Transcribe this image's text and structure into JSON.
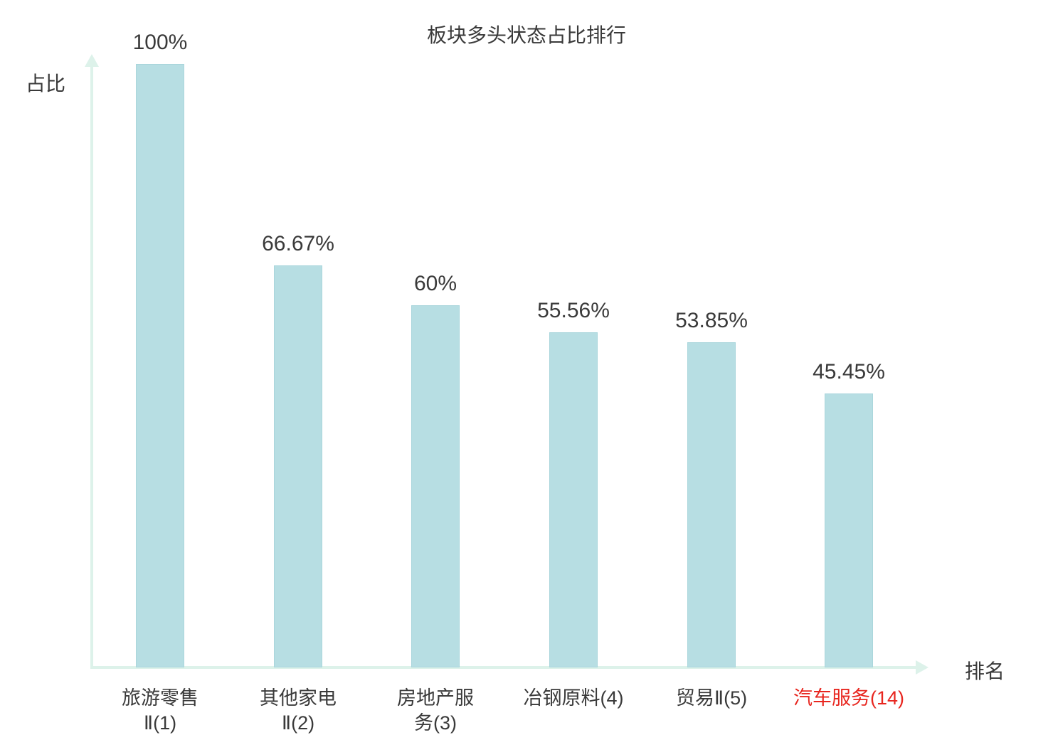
{
  "chart_data": {
    "type": "bar",
    "title": "板块多头状态占比排行",
    "xlabel": "排名",
    "ylabel": "占比",
    "ylim": [
      0,
      100
    ],
    "grid": false,
    "legend": false,
    "categories": [
      "旅游零售Ⅱ(1)",
      "其他家电Ⅱ(2)",
      "房地产服务(3)",
      "冶钢原料(4)",
      "贸易Ⅱ(5)",
      "汽车服务(14)"
    ],
    "category_lines": [
      [
        "旅游零售",
        "Ⅱ(1)"
      ],
      [
        "其他家电",
        "Ⅱ(2)"
      ],
      [
        "房地产服",
        "务(3)"
      ],
      [
        "冶钢原料(4)"
      ],
      [
        "贸易Ⅱ(5)"
      ],
      [
        "汽车服务(14)"
      ]
    ],
    "values": [
      100,
      66.67,
      60,
      55.56,
      53.85,
      45.45
    ],
    "value_labels": [
      "100%",
      "66.67%",
      "60%",
      "55.56%",
      "53.85%",
      "45.45%"
    ],
    "highlight_index": 5,
    "colors": {
      "bar": "#b7dee3",
      "bar_edge": "#aad6dc",
      "axis": "#ddf2ea",
      "text": "#3a3a3a",
      "highlight": "#e8261f",
      "background": "#ffffff"
    }
  }
}
